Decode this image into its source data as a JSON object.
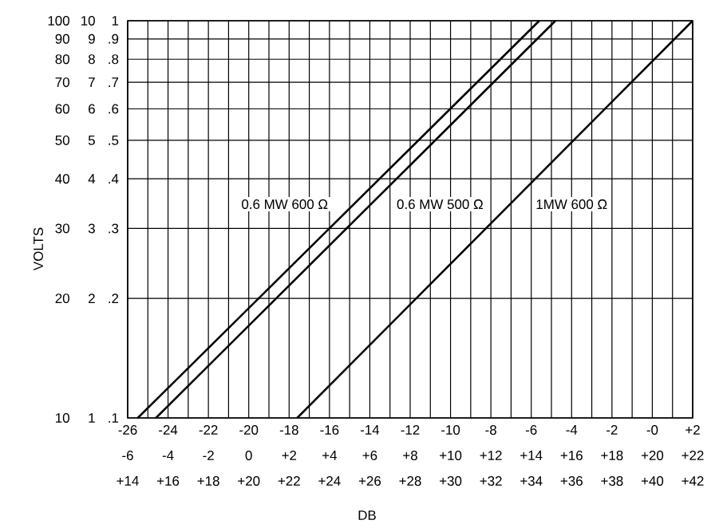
{
  "chart_data": {
    "type": "line",
    "xlabel": "DB",
    "ylabel": "VOLTS",
    "log": "y",
    "grid": true,
    "xlim": [
      -26,
      2
    ],
    "xticks": [
      -26,
      {
        "value": -25,
        "label": null
      },
      -24,
      {
        "value": -23,
        "label": null
      },
      -22,
      {
        "value": -21,
        "label": null
      },
      -20,
      {
        "value": -19,
        "label": null
      },
      -18,
      {
        "value": -17,
        "label": null
      },
      -16,
      {
        "value": -15,
        "label": null
      },
      -14,
      {
        "value": -13,
        "label": null
      },
      -12,
      {
        "value": -11,
        "label": null
      },
      -10,
      {
        "value": -9,
        "label": null
      },
      -8,
      {
        "value": -7,
        "label": null
      },
      -6,
      {
        "value": -5,
        "label": null
      },
      -4,
      {
        "value": -3,
        "label": null
      },
      -2,
      {
        "value": -1,
        "label": null
      },
      {
        "value": 0,
        "label": "-0"
      },
      {
        "value": 1,
        "label": null
      },
      {
        "value": 2,
        "label": "+2"
      }
    ],
    "x2lim": [
      -6,
      22
    ],
    "x2ticks": [
      -6,
      -4,
      -2,
      0,
      {
        "value": 2,
        "label": "+2"
      },
      {
        "value": 4,
        "label": "+4"
      },
      {
        "value": 6,
        "label": "+6"
      },
      {
        "value": 8,
        "label": "+8"
      },
      {
        "value": 10,
        "label": "+10"
      },
      {
        "value": 12,
        "label": "+12"
      },
      {
        "value": 14,
        "label": "+14"
      },
      {
        "value": 16,
        "label": "+16"
      },
      {
        "value": 18,
        "label": "+18"
      },
      {
        "value": 20,
        "label": "+20"
      },
      {
        "value": 22,
        "label": "+22"
      }
    ],
    "annotations": [
      "+14",
      "+16",
      "+18",
      "+20",
      "+22",
      "+24",
      "+26",
      "+28",
      "+30",
      "+32",
      "+34",
      "+36",
      "+38",
      "+40",
      "+42",
      "1",
      "2",
      "3",
      "4",
      "5",
      "6",
      "7",
      "8",
      "9",
      "10",
      "10",
      "20",
      "30",
      "40",
      "50",
      "60",
      "70",
      "80",
      "90",
      "100"
    ],
    "ylim": [
      0.1,
      1
    ],
    "yticks": [
      {
        "value": 0.1,
        "label": ".1"
      },
      {
        "value": 0.2,
        "label": ".2"
      },
      {
        "value": 0.3,
        "label": ".3"
      },
      {
        "value": 0.4,
        "label": ".4"
      },
      {
        "value": 0.5,
        "label": ".5"
      },
      {
        "value": 0.6,
        "label": ".6"
      },
      {
        "value": 0.7,
        "label": ".7"
      },
      {
        "value": 0.8,
        "label": ".8"
      },
      {
        "value": 0.9,
        "label": ".9"
      },
      1
    ],
    "series": [
      {
        "name": "0.6 MW 600 Ω",
        "color": "#000000",
        "x": [
          -25.5,
          -5.6
        ],
        "values": [
          0.1,
          1
        ]
      },
      {
        "name": "0.6 MW 500 Ω",
        "color": "#000000",
        "x": [
          -24.6,
          -4.8
        ],
        "values": [
          0.1,
          1
        ]
      },
      {
        "name": "1MW 600 Ω",
        "color": "#000000",
        "x": [
          -17.6,
          2
        ],
        "values": [
          0.1,
          1
        ]
      }
    ]
  }
}
